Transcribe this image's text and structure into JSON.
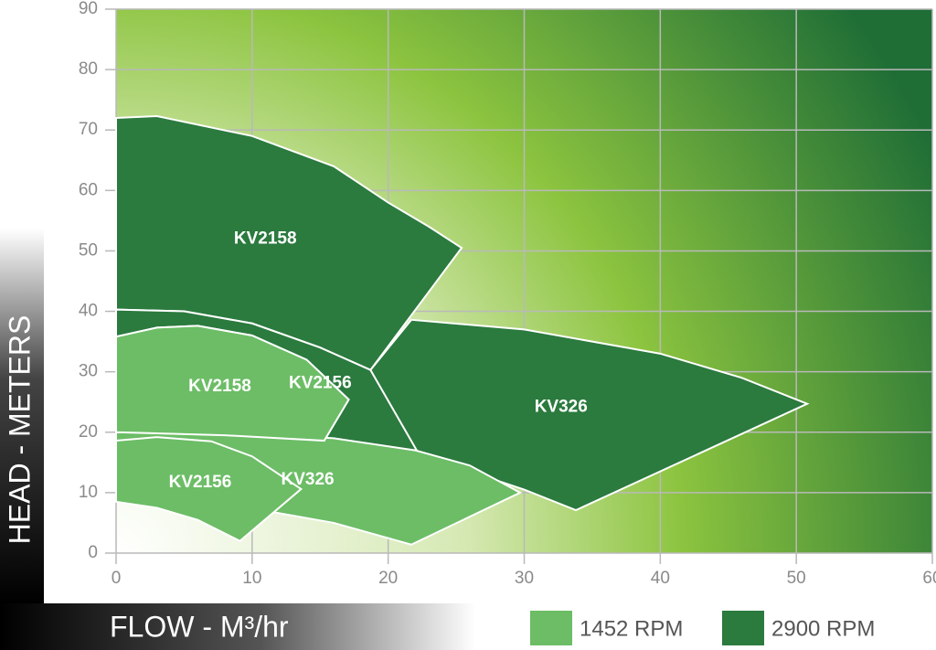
{
  "chart_data": {
    "type": "region",
    "x_label": "FLOW - M³/hr",
    "y_label": "HEAD - METERS",
    "xlim": [
      0,
      60
    ],
    "ylim": [
      0,
      90
    ],
    "xticks": [
      0,
      10,
      20,
      30,
      40,
      50,
      60
    ],
    "yticks": [
      0,
      10,
      20,
      30,
      40,
      50,
      60,
      70,
      80,
      90
    ],
    "grid": true,
    "legend": [
      {
        "name": "1452 RPM",
        "color": "#6cbd66"
      },
      {
        "name": "2900 RPM",
        "color": "#2b7a3e"
      }
    ],
    "series": [
      {
        "name": "KV2158",
        "color": "#2b7a3e",
        "x": [
          0,
          3,
          10,
          16,
          20,
          23,
          25.4,
          18.7,
          15,
          10,
          5,
          0
        ],
        "y": [
          72,
          72.3,
          69,
          64,
          58,
          54,
          50.5,
          30.3,
          34,
          38,
          40,
          40.3
        ]
      },
      {
        "name": "KV2156",
        "color": "#2b7a3e",
        "x": [
          0,
          5,
          10,
          15,
          18.7,
          22,
          24,
          22.2,
          15.3,
          17.1,
          14,
          10,
          6,
          3,
          0
        ],
        "y": [
          40.3,
          40,
          38,
          34,
          30.3,
          24,
          20.5,
          16.6,
          18.6,
          25.4,
          32,
          36,
          37.6,
          37.3,
          35.8
        ]
      },
      {
        "name": "KV326",
        "color": "#2b7a3e",
        "x": [
          21.7,
          30,
          40,
          46,
          50.8,
          33.8,
          30,
          26,
          22.2,
          18.7
        ],
        "y": [
          38.6,
          37,
          33,
          29,
          24.7,
          7.1,
          10.5,
          13.5,
          16.6,
          30.3
        ]
      },
      {
        "name": "KV326",
        "color": "#6cbd66",
        "x": [
          0,
          10,
          16,
          22,
          26,
          29.7,
          21.7,
          16,
          11,
          6,
          0
        ],
        "y": [
          20,
          19.8,
          19,
          17,
          14.5,
          10,
          1.4,
          5,
          7,
          8.5,
          9
        ]
      },
      {
        "name": "KV2158",
        "color": "#6cbd66",
        "x": [
          0,
          3,
          6,
          10,
          14,
          17.1,
          15.3,
          8,
          0
        ],
        "y": [
          35.8,
          37.3,
          37.6,
          36,
          32,
          25.4,
          18.6,
          19.5,
          20
        ]
      },
      {
        "name": "KV2156",
        "color": "#6cbd66",
        "x": [
          0,
          3,
          7,
          10,
          13.6,
          9.1,
          6,
          3,
          0
        ],
        "y": [
          18.6,
          19.2,
          18.5,
          16,
          10.6,
          2,
          5.5,
          7.5,
          8.5
        ]
      }
    ]
  }
}
